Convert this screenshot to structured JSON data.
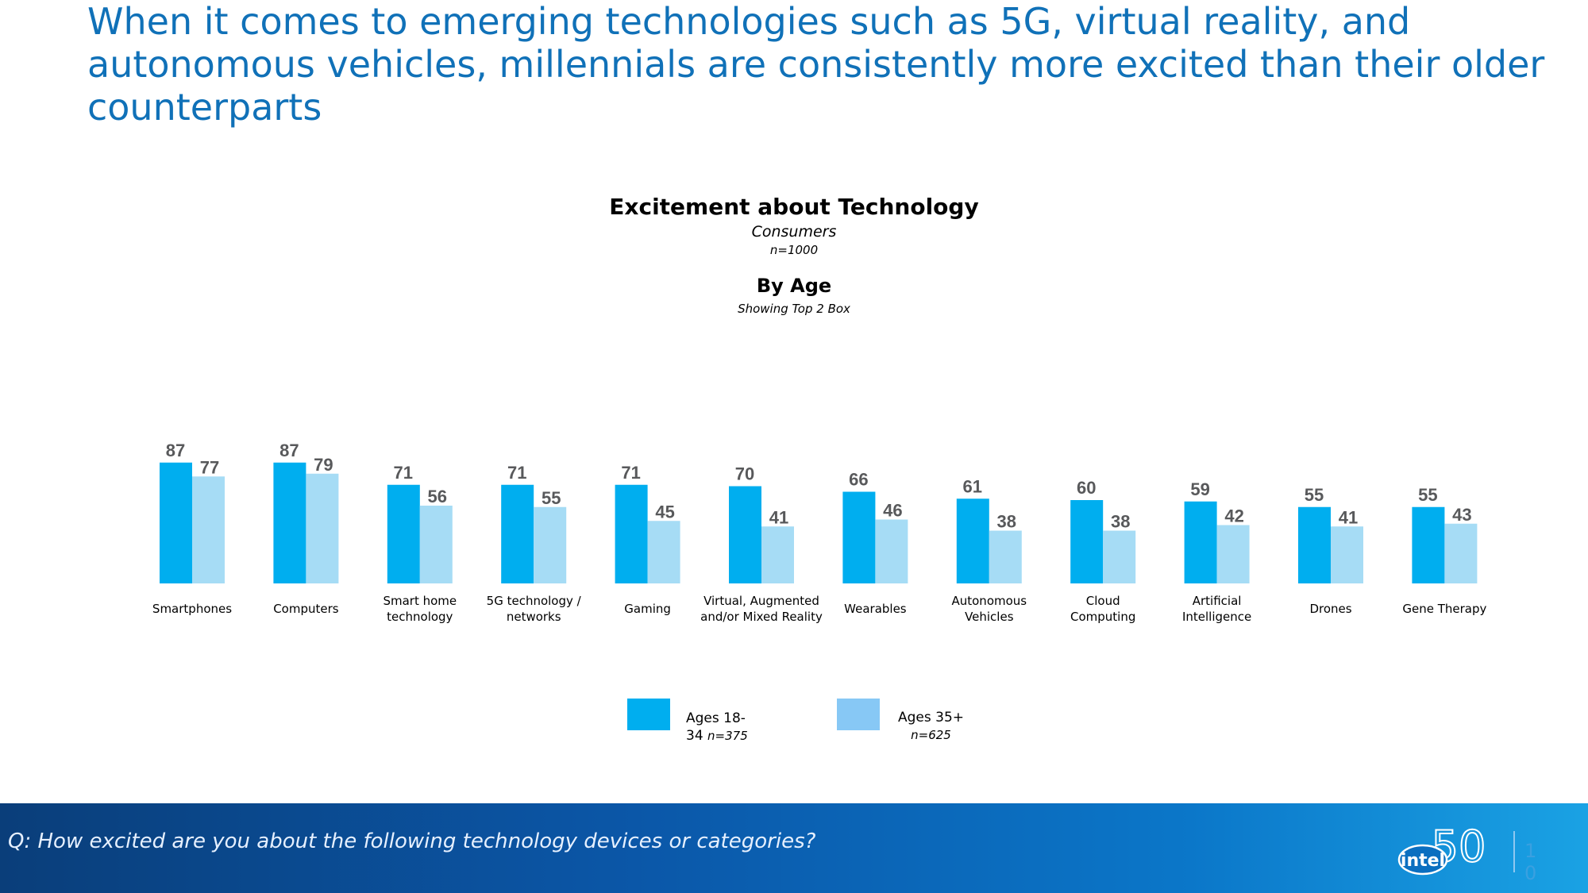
{
  "headline": "When it comes to emerging technologies such as 5G, virtual reality, and autonomous vehicles, millennials are consistently more excited than their older counterparts",
  "colors": {
    "series1": "#00aeef",
    "series2": "#a6dcf5",
    "legend2": "#87c8f5",
    "title": "#1071b8",
    "value_label": "#58595b"
  },
  "chart_data": {
    "type": "bar",
    "title": "Excitement about Technology",
    "subtitle": "Consumers",
    "sample": "n=1000",
    "section_title": "By Age",
    "section_note": "Showing Top 2 Box",
    "categories": [
      [
        "Smartphones"
      ],
      [
        "Computers"
      ],
      [
        "Smart home",
        "technology"
      ],
      [
        "5G technology /",
        "networks"
      ],
      [
        "Gaming"
      ],
      [
        "Virtual, Augmented",
        "and/or Mixed Reality"
      ],
      [
        "Wearables"
      ],
      [
        "Autonomous",
        "Vehicles"
      ],
      [
        "Cloud",
        "Computing"
      ],
      [
        "Artificial",
        "Intelligence"
      ],
      [
        "Drones"
      ],
      [
        "Gene Therapy"
      ]
    ],
    "series": [
      {
        "name": "Ages 18-34",
        "values": [
          87,
          87,
          71,
          71,
          71,
          70,
          66,
          61,
          60,
          59,
          55,
          55
        ]
      },
      {
        "name": "Ages 35+",
        "values": [
          77,
          79,
          56,
          55,
          45,
          41,
          46,
          38,
          38,
          42,
          41,
          43
        ]
      }
    ],
    "ylim": [
      0,
      100
    ]
  },
  "legend": [
    {
      "label": "Ages 18-",
      "label2": "34",
      "n": "n=375"
    },
    {
      "label": "Ages 35+",
      "n": "n=625"
    }
  ],
  "footer": {
    "question": "Q: How excited are you about the following technology devices or categories?",
    "logo_text": "intel",
    "logo_number": "50",
    "page": "10"
  }
}
